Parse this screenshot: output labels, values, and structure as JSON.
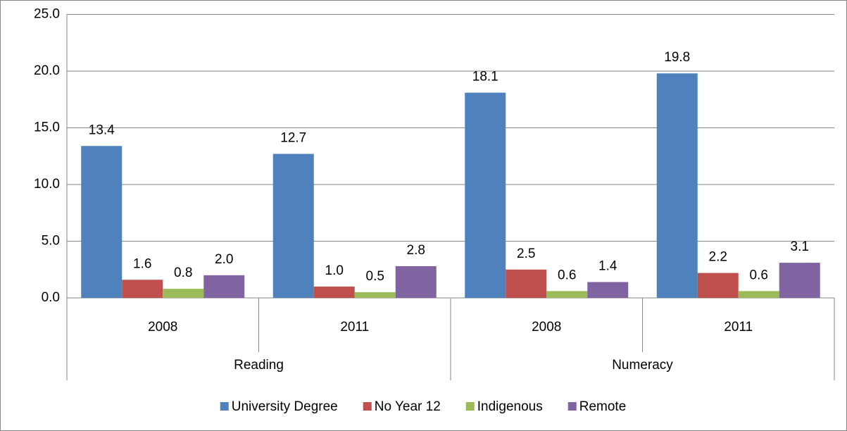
{
  "chart_data": {
    "type": "bar",
    "category_groups": [
      {
        "name": "Reading",
        "categories": [
          "2008",
          "2011"
        ]
      },
      {
        "name": "Numeracy",
        "categories": [
          "2008",
          "2011"
        ]
      }
    ],
    "series": [
      {
        "name": "University Degree",
        "color": "#4f81bd",
        "values": [
          13.4,
          12.7,
          18.1,
          19.8
        ],
        "value_labels": [
          "13.4",
          "12.7",
          "18.1",
          "19.8"
        ]
      },
      {
        "name": "No Year 12",
        "color": "#c0504d",
        "values": [
          1.6,
          1.0,
          2.5,
          2.2
        ],
        "value_labels": [
          "1.6",
          "1.0",
          "2.5",
          "2.2"
        ]
      },
      {
        "name": "Indigenous",
        "color": "#9bbb59",
        "values": [
          0.8,
          0.5,
          0.6,
          0.6
        ],
        "value_labels": [
          "0.8",
          "0.5",
          "0.6",
          "0.6"
        ]
      },
      {
        "name": "Remote",
        "color": "#8064a2",
        "values": [
          2.0,
          2.8,
          1.4,
          3.1
        ],
        "value_labels": [
          "2.0",
          "2.8",
          "1.4",
          "3.1"
        ]
      }
    ],
    "ylim": [
      0,
      25
    ],
    "yticks": [
      {
        "value": 0,
        "label": "0.0"
      },
      {
        "value": 5,
        "label": "5.0"
      },
      {
        "value": 10,
        "label": "10.0"
      },
      {
        "value": 15,
        "label": "15.0"
      },
      {
        "value": 20,
        "label": "20.0"
      },
      {
        "value": 25,
        "label": "25.0"
      }
    ],
    "grid": true,
    "legend": "bottom"
  }
}
